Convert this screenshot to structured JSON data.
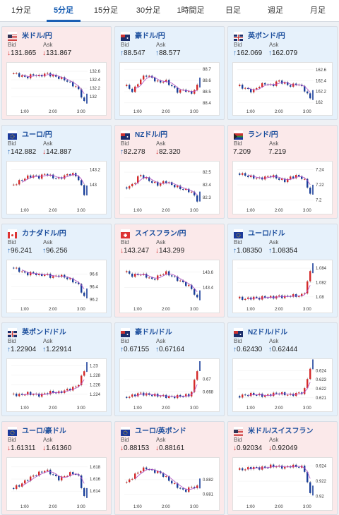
{
  "tabs": [
    "1分足",
    "5分足",
    "15分足",
    "30分足",
    "1時間足",
    "日足",
    "週足",
    "月足"
  ],
  "active_tab": 1,
  "bid_label": "Bid",
  "ask_label": "Ask",
  "x_ticks": [
    "1:00",
    "2:00",
    "3:00"
  ],
  "colors": {
    "up": "#d42a2a",
    "down": "#1a3f9a",
    "ma": "#b04cc4",
    "accent": "#1a5fb4"
  },
  "cards": [
    {
      "name": "米ドル/円",
      "flag": "us-flag-icon",
      "bg": "pink",
      "bid": "131.865",
      "bid_dir": "down",
      "ask": "131.867",
      "ask_dir": "down",
      "yticks": [
        "132.6",
        "132.4",
        "132.2",
        "132"
      ],
      "ymin": 131.8,
      "ymax": 132.7,
      "trend": [
        132.55,
        132.5,
        132.45,
        132.52,
        132.48,
        132.55,
        132.5,
        132.45,
        132.4,
        132.3,
        132.2,
        131.87
      ]
    },
    {
      "name": "豪ドル/円",
      "flag": "au-flag-icon",
      "bg": "blue",
      "bid": "88.547",
      "bid_dir": "up",
      "ask": "88.577",
      "ask_dir": "up",
      "yticks": [
        "88.7",
        "88.6",
        "88.5",
        "88.4"
      ],
      "ymin": 88.38,
      "ymax": 88.72,
      "trend": [
        88.55,
        88.5,
        88.6,
        88.65,
        88.62,
        88.58,
        88.6,
        88.55,
        88.5,
        88.52,
        88.48,
        88.55
      ]
    },
    {
      "name": "英ポンド/円",
      "flag": "gb-flag-icon",
      "bg": "blue",
      "bid": "162.069",
      "bid_dir": "up",
      "ask": "162.079",
      "ask_dir": "up",
      "yticks": [
        "162.6",
        "162.4",
        "162.2",
        "162"
      ],
      "ymin": 161.95,
      "ymax": 162.65,
      "trend": [
        162.3,
        162.25,
        162.2,
        162.3,
        162.35,
        162.3,
        162.4,
        162.35,
        162.3,
        162.35,
        162.25,
        162.07
      ]
    },
    {
      "name": "ユーロ/円",
      "flag": "eu-flag-icon",
      "bg": "blue",
      "bid": "142.882",
      "bid_dir": "up",
      "ask": "142.887",
      "ask_dir": "down",
      "yticks": [
        "143.2",
        "143"
      ],
      "ymin": 142.75,
      "ymax": 143.25,
      "trend": [
        143.0,
        143.05,
        143.1,
        143.12,
        143.1,
        143.15,
        143.1,
        143.08,
        143.12,
        143.15,
        143.1,
        142.88
      ]
    },
    {
      "name": "NZドル/円",
      "flag": "nz-flag-icon",
      "bg": "pink",
      "bid": "82.278",
      "bid_dir": "up",
      "ask": "82.320",
      "ask_dir": "down",
      "yticks": [
        "82.5",
        "82.4",
        "82.3"
      ],
      "ymin": 82.25,
      "ymax": 82.55,
      "trend": [
        82.38,
        82.4,
        82.48,
        82.45,
        82.42,
        82.4,
        82.43,
        82.4,
        82.38,
        82.36,
        82.35,
        82.28
      ]
    },
    {
      "name": "ランド/円",
      "flag": "za-flag-icon",
      "bg": "pink",
      "bid": "7.209",
      "bid_dir": "none",
      "ask": "7.219",
      "ask_dir": "none",
      "yticks": [
        "7.24",
        "7.22",
        "7.2"
      ],
      "ymin": 7.195,
      "ymax": 7.245,
      "trend": [
        7.235,
        7.232,
        7.23,
        7.228,
        7.23,
        7.232,
        7.228,
        7.225,
        7.23,
        7.232,
        7.228,
        7.209
      ]
    },
    {
      "name": "カナダドル/円",
      "flag": "ca-flag-icon",
      "bg": "blue",
      "bid": "96.241",
      "bid_dir": "up",
      "ask": "96.256",
      "ask_dir": "up",
      "yticks": [
        "96.6",
        "96.4",
        "96.2"
      ],
      "ymin": 96.15,
      "ymax": 96.75,
      "trend": [
        96.7,
        96.65,
        96.6,
        96.62,
        96.58,
        96.6,
        96.55,
        96.58,
        96.55,
        96.5,
        96.45,
        96.24
      ]
    },
    {
      "name": "スイスフラン/円",
      "flag": "ch-flag-icon",
      "bg": "pink",
      "bid": "143.247",
      "bid_dir": "down",
      "ask": "143.299",
      "ask_dir": "down",
      "yticks": [
        "143.6",
        "143.4"
      ],
      "ymin": 143.2,
      "ymax": 143.7,
      "trend": [
        143.6,
        143.55,
        143.58,
        143.55,
        143.5,
        143.55,
        143.6,
        143.55,
        143.5,
        143.45,
        143.4,
        143.25
      ]
    },
    {
      "name": "ユーロ/ドル",
      "flag": "eu-us-flag-icon",
      "bg": "blue",
      "bid": "1.08350",
      "bid_dir": "up",
      "ask": "1.08354",
      "ask_dir": "up",
      "yticks": [
        "1.084",
        "1.082",
        "1.08"
      ],
      "ymin": 1.0792,
      "ymax": 1.0845,
      "trend": [
        1.0798,
        1.0797,
        1.0799,
        1.0798,
        1.08,
        1.0799,
        1.0801,
        1.08,
        1.0802,
        1.0801,
        1.0803,
        1.0835
      ]
    },
    {
      "name": "英ポンド/ドル",
      "flag": "gb-us-flag-icon",
      "bg": "blue",
      "bid": "1.22904",
      "bid_dir": "up",
      "ask": "1.22914",
      "ask_dir": "up",
      "yticks": [
        "1.23",
        "1.228",
        "1.226",
        "1.224"
      ],
      "ymin": 1.2225,
      "ymax": 1.2305,
      "trend": [
        1.224,
        1.2238,
        1.2242,
        1.224,
        1.2238,
        1.2242,
        1.2245,
        1.2243,
        1.2248,
        1.2252,
        1.2258,
        1.229
      ]
    },
    {
      "name": "豪ドル/ドル",
      "flag": "au-us-flag-icon",
      "bg": "blue",
      "bid": "0.67155",
      "bid_dir": "up",
      "ask": "0.67164",
      "ask_dir": "up",
      "yticks": [
        "0.67",
        "0.668"
      ],
      "ymin": 0.6665,
      "ymax": 0.6725,
      "trend": [
        0.6672,
        0.6674,
        0.6678,
        0.6676,
        0.6675,
        0.6674,
        0.6673,
        0.6672,
        0.6673,
        0.6674,
        0.6675,
        0.6715
      ]
    },
    {
      "name": "NZドル/ドル",
      "flag": "nz-us-flag-icon",
      "bg": "blue",
      "bid": "0.62430",
      "bid_dir": "up",
      "ask": "0.62444",
      "ask_dir": "up",
      "yticks": [
        "0.624",
        "0.623",
        "0.622",
        "0.621"
      ],
      "ymin": 0.6206,
      "ymax": 0.6248,
      "trend": [
        0.6212,
        0.6213,
        0.6214,
        0.6213,
        0.6212,
        0.6214,
        0.6215,
        0.6214,
        0.6213,
        0.6215,
        0.6216,
        0.6243
      ]
    },
    {
      "name": "ユーロ/豪ドル",
      "flag": "eu-au-flag-icon",
      "bg": "pink",
      "bid": "1.61311",
      "bid_dir": "down",
      "ask": "1.61360",
      "ask_dir": "down",
      "yticks": [
        "1.618",
        "1.616",
        "1.614"
      ],
      "ymin": 1.6125,
      "ymax": 1.6188,
      "trend": [
        1.6145,
        1.615,
        1.6158,
        1.6165,
        1.617,
        1.6175,
        1.6168,
        1.616,
        1.6165,
        1.617,
        1.6168,
        1.6131
      ]
    },
    {
      "name": "ユーロ/英ポンド",
      "flag": "eu-gb-flag-icon",
      "bg": "pink",
      "bid": "0.88153",
      "bid_dir": "down",
      "ask": "0.88161",
      "ask_dir": "down",
      "yticks": [
        "0.882",
        "0.881"
      ],
      "ymin": 0.8806,
      "ymax": 0.8832,
      "trend": [
        0.8818,
        0.8822,
        0.8826,
        0.8828,
        0.8826,
        0.8825,
        0.8822,
        0.8818,
        0.8815,
        0.8812,
        0.8815,
        0.8815
      ]
    },
    {
      "name": "米ドル/スイスフラン",
      "flag": "us-ch-flag-icon",
      "bg": "pink",
      "bid": "0.92034",
      "bid_dir": "down",
      "ask": "0.92049",
      "ask_dir": "down",
      "yticks": [
        "0.924",
        "0.922",
        "0.92"
      ],
      "ymin": 0.9195,
      "ymax": 0.9245,
      "trend": [
        0.9235,
        0.9236,
        0.9238,
        0.9237,
        0.9238,
        0.924,
        0.9239,
        0.9238,
        0.924,
        0.9239,
        0.9238,
        0.9203
      ]
    }
  ]
}
